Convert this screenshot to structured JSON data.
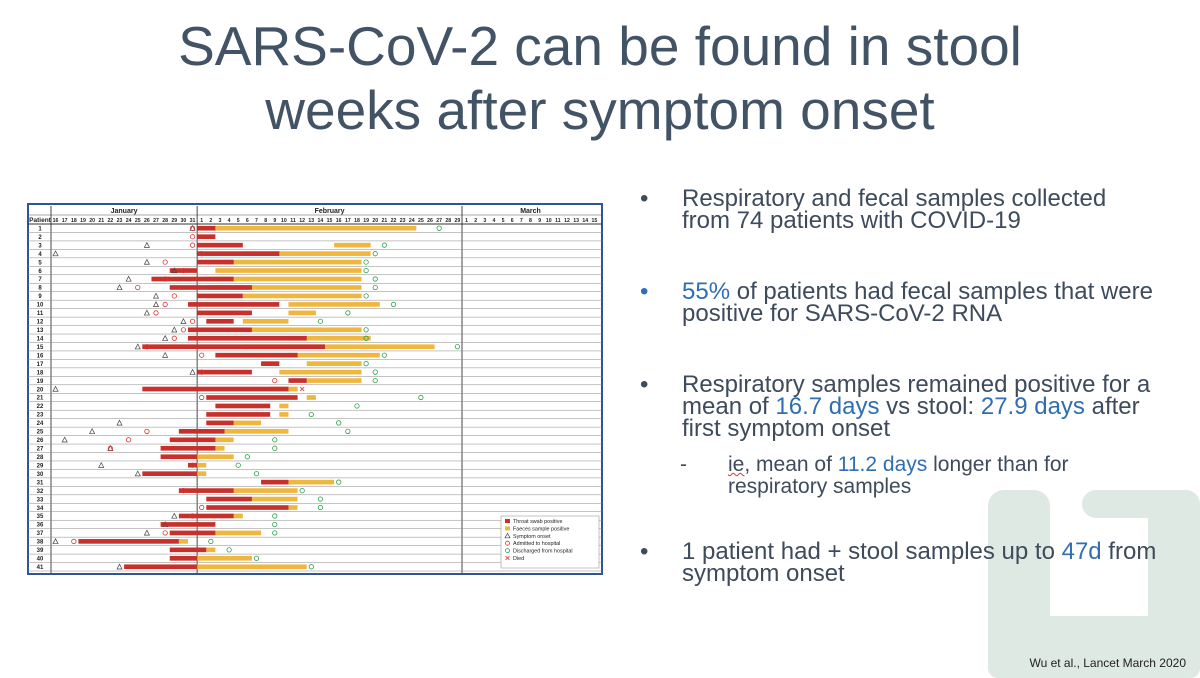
{
  "slide": {
    "title_line1": "SARS-CoV-2 can be found in stool",
    "title_line2": "weeks after symptom onset",
    "citation": "Wu et al., Lancet March 2020",
    "accent_colors": {
      "title": "#425366",
      "highlight": "#2f6eb2",
      "throat": "#c8302b",
      "faeces": "#f0b73e",
      "deco": "#dfe9e4"
    }
  },
  "bullets": [
    {
      "marker": "•",
      "parts": [
        "Respiratory and fecal samples collected from 74 patients with COVID-19"
      ]
    },
    {
      "marker": "•",
      "parts": [
        "55%",
        " of patients had fecal samples that were positive for SARS-CoV-2 RNA"
      ]
    },
    {
      "marker": "•",
      "parts": [
        "Respiratory samples remained positive for a mean of ",
        "16.7 days",
        " vs stool: ",
        "27.9 days",
        " after first symptom onset"
      ],
      "sub": {
        "marker": "-",
        "parts": [
          "ie",
          ", mean of ",
          "11.2 days",
          " longer than for respiratory samples"
        ]
      }
    },
    {
      "marker": "•",
      "parts": [
        "1 patient had + stool samples up to ",
        "47d",
        " from symptom onset"
      ]
    }
  ],
  "chart_data": {
    "type": "table",
    "header_label": "Patient",
    "months": [
      {
        "name": "January",
        "days": [
          "16",
          "17",
          "18",
          "19",
          "20",
          "21",
          "22",
          "23",
          "24",
          "25",
          "26",
          "27",
          "28",
          "29",
          "30",
          "31"
        ]
      },
      {
        "name": "February",
        "days": [
          "1",
          "2",
          "3",
          "4",
          "5",
          "6",
          "7",
          "8",
          "9",
          "10",
          "11",
          "12",
          "13",
          "14",
          "15",
          "16",
          "17",
          "18",
          "19",
          "20",
          "21",
          "22",
          "23",
          "24",
          "25",
          "26",
          "27",
          "28",
          "29"
        ]
      },
      {
        "name": "March",
        "days": [
          "1",
          "2",
          "3",
          "4",
          "5",
          "6",
          "7",
          "8",
          "9",
          "10",
          "11",
          "12",
          "13",
          "14",
          "15"
        ]
      }
    ],
    "patients": [
      "1",
      "2",
      "3",
      "4",
      "5",
      "6",
      "7",
      "8",
      "9",
      "10",
      "11",
      "12",
      "13",
      "14",
      "15",
      "16",
      "17",
      "18",
      "19",
      "20",
      "21",
      "22",
      "23",
      "24",
      "25",
      "26",
      "27",
      "28",
      "29",
      "30",
      "31",
      "32",
      "33",
      "34",
      "35",
      "36",
      "37",
      "38",
      "39",
      "40",
      "41"
    ],
    "legend": [
      {
        "symbol": "red-bar",
        "label": "Throat swab positive"
      },
      {
        "symbol": "yellow-bar",
        "label": "Faeces sample positive"
      },
      {
        "symbol": "triangle",
        "label": "Symptom onset"
      },
      {
        "symbol": "red-circle",
        "label": "Admitted to hospital"
      },
      {
        "symbol": "green-circle",
        "label": "Discharged from hospital"
      },
      {
        "symbol": "x",
        "label": "Died"
      }
    ],
    "rows_day_index": [
      {
        "onset": 15,
        "admit": 15,
        "throat": [
          16,
          18
        ],
        "faeces": [
          18,
          40
        ],
        "discharge": 42
      },
      {
        "onset": null,
        "admit": 15,
        "throat": [
          16,
          18
        ],
        "faeces": null,
        "discharge": null
      },
      {
        "onset": 10,
        "admit": 15,
        "throat": [
          16,
          21
        ],
        "faeces": [
          31,
          35
        ],
        "discharge": 36
      },
      {
        "onset": 0,
        "admit": 16,
        "throat": [
          16,
          25
        ],
        "faeces": [
          21,
          35
        ],
        "discharge": 35
      },
      {
        "onset": 10,
        "admit": 12,
        "throat": [
          16,
          20
        ],
        "faeces": [
          19,
          34
        ],
        "discharge": 34
      },
      {
        "onset": 13,
        "admit": 14,
        "throat": [
          13,
          16
        ],
        "faeces": [
          18,
          34
        ],
        "discharge": 34
      },
      {
        "onset": 8,
        "admit": 12,
        "throat": [
          11,
          20
        ],
        "faeces": [
          17,
          34
        ],
        "discharge": 35
      },
      {
        "onset": 7,
        "admit": 9,
        "throat": [
          13,
          22
        ],
        "faeces": [
          17,
          34
        ],
        "discharge": 35
      },
      {
        "onset": 11,
        "admit": 13,
        "throat": [
          16,
          21
        ],
        "faeces": [
          21,
          34
        ],
        "discharge": 34
      },
      {
        "onset": 11,
        "admit": 12,
        "throat": [
          15,
          25
        ],
        "faeces": [
          26,
          36
        ],
        "discharge": 37
      },
      {
        "onset": 10,
        "admit": 11,
        "throat": [
          16,
          22
        ],
        "faeces": [
          26,
          29
        ],
        "discharge": 32
      },
      {
        "onset": 14,
        "admit": 15,
        "throat": [
          17,
          20
        ],
        "faeces": [
          21,
          26
        ],
        "discharge": 29
      },
      {
        "onset": 13,
        "admit": 14,
        "throat": [
          15,
          22
        ],
        "faeces": [
          22,
          34
        ],
        "discharge": 34
      },
      {
        "onset": 12,
        "admit": 13,
        "throat": [
          15,
          28
        ],
        "faeces": [
          26,
          35
        ],
        "discharge": 34
      },
      {
        "onset": 9,
        "admit": 10,
        "throat": [
          10,
          30
        ],
        "faeces": [
          21,
          42
        ],
        "discharge": 44
      },
      {
        "onset": 12,
        "admit": 16,
        "throat": [
          18,
          27
        ],
        "faeces": [
          26,
          36
        ],
        "discharge": 36
      },
      {
        "onset": null,
        "admit": null,
        "throat": [
          23,
          25
        ],
        "faeces": [
          28,
          34
        ],
        "discharge": 34
      },
      {
        "onset": 15,
        "admit": 16,
        "throat": [
          16,
          22
        ],
        "faeces": [
          25,
          34
        ],
        "discharge": 35
      },
      {
        "onset": null,
        "admit": 24,
        "throat": [
          26,
          28
        ],
        "faeces": [
          28,
          34
        ],
        "discharge": 35
      },
      {
        "onset": 0,
        "admit": null,
        "throat": [
          10,
          26
        ],
        "faeces": [
          24,
          27
        ],
        "died": 27
      },
      {
        "onset": null,
        "admit": 16,
        "throat": [
          17,
          27
        ],
        "faeces": [
          28,
          29
        ],
        "discharge": 40
      },
      {
        "onset": null,
        "admit": null,
        "throat": [
          18,
          24
        ],
        "faeces": [
          25,
          26
        ],
        "discharge": 33
      },
      {
        "onset": null,
        "admit": null,
        "throat": [
          17,
          24
        ],
        "faeces": [
          25,
          26
        ],
        "discharge": 28
      },
      {
        "onset": 7,
        "admit": null,
        "throat": [
          17,
          20
        ],
        "faeces": [
          20,
          23
        ],
        "discharge": 31
      },
      {
        "onset": 4,
        "admit": 10,
        "throat": [
          14,
          19
        ],
        "faeces": [
          19,
          26
        ],
        "discharge": 32
      },
      {
        "onset": 1,
        "admit": 8,
        "throat": [
          13,
          18
        ],
        "faeces": [
          18,
          20
        ],
        "discharge": 24
      },
      {
        "onset": 6,
        "admit": 6,
        "throat": [
          12,
          18
        ],
        "faeces": [
          18,
          19
        ],
        "discharge": 24
      },
      {
        "onset": null,
        "admit": null,
        "throat": [
          12,
          16
        ],
        "faeces": [
          16,
          20
        ],
        "discharge": 21
      },
      {
        "onset": 5,
        "admit": 15,
        "throat": [
          15,
          16
        ],
        "faeces": [
          16,
          17
        ],
        "discharge": 20
      },
      {
        "onset": 9,
        "admit": null,
        "throat": [
          10,
          16
        ],
        "faeces": [
          16,
          17
        ],
        "discharge": 22
      },
      {
        "onset": null,
        "admit": null,
        "throat": [
          23,
          26
        ],
        "faeces": [
          26,
          31
        ],
        "discharge": 31
      },
      {
        "onset": null,
        "admit": 14,
        "throat": [
          14,
          20
        ],
        "faeces": [
          20,
          27
        ],
        "discharge": 27
      },
      {
        "onset": null,
        "admit": null,
        "throat": [
          17,
          22
        ],
        "faeces": [
          22,
          27
        ],
        "discharge": 29
      },
      {
        "onset": null,
        "admit": 16,
        "throat": [
          17,
          26
        ],
        "faeces": [
          26,
          27
        ],
        "discharge": 29
      },
      {
        "onset": 13,
        "admit": 15,
        "throat": [
          14,
          20
        ],
        "faeces": [
          20,
          21
        ],
        "discharge": 24
      },
      {
        "onset": 12,
        "admit": 12,
        "throat": [
          12,
          18
        ],
        "faeces": null,
        "discharge": 24
      },
      {
        "onset": 10,
        "admit": 12,
        "throat": [
          13,
          18
        ],
        "faeces": [
          18,
          23
        ],
        "discharge": 24
      },
      {
        "onset": 0,
        "admit": 2,
        "throat": [
          3,
          14
        ],
        "faeces": [
          14,
          15
        ],
        "discharge": 17
      },
      {
        "onset": null,
        "admit": null,
        "throat": [
          13,
          17
        ],
        "faeces": [
          17,
          18
        ],
        "discharge": 19
      },
      {
        "onset": null,
        "admit": null,
        "throat": [
          13,
          16
        ],
        "faeces": [
          16,
          22
        ],
        "discharge": 22
      },
      {
        "onset": 7,
        "admit": null,
        "throat": [
          8,
          16
        ],
        "faeces": [
          16,
          28
        ],
        "discharge": 28
      }
    ]
  }
}
